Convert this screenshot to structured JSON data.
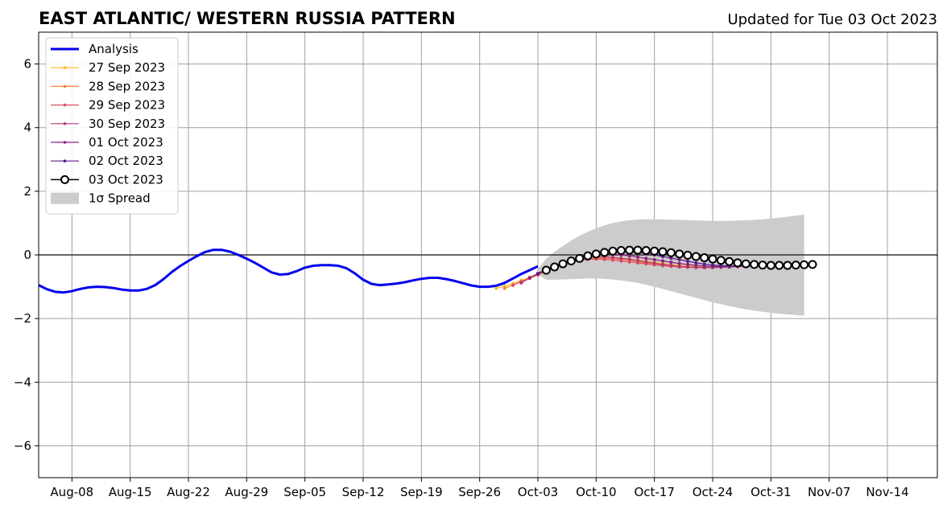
{
  "chart_data": {
    "type": "line",
    "title": "EAST ATLANTIC/ WESTERN RUSSIA PATTERN",
    "subtitle": "Updated for Tue 03 Oct 2023",
    "xlabel": "",
    "ylabel": "",
    "x_range": [
      "2023-08-04",
      "2023-11-20"
    ],
    "ylim": [
      -7,
      7
    ],
    "grid": true,
    "legend_position": "upper-left",
    "x_ticks": [
      {
        "date": "2023-08-08",
        "label": "Aug-08"
      },
      {
        "date": "2023-08-15",
        "label": "Aug-15"
      },
      {
        "date": "2023-08-22",
        "label": "Aug-22"
      },
      {
        "date": "2023-08-29",
        "label": "Aug-29"
      },
      {
        "date": "2023-09-05",
        "label": "Sep-05"
      },
      {
        "date": "2023-09-12",
        "label": "Sep-12"
      },
      {
        "date": "2023-09-19",
        "label": "Sep-19"
      },
      {
        "date": "2023-09-26",
        "label": "Sep-26"
      },
      {
        "date": "2023-10-03",
        "label": "Oct-03"
      },
      {
        "date": "2023-10-10",
        "label": "Oct-10"
      },
      {
        "date": "2023-10-17",
        "label": "Oct-17"
      },
      {
        "date": "2023-10-24",
        "label": "Oct-24"
      },
      {
        "date": "2023-10-31",
        "label": "Oct-31"
      },
      {
        "date": "2023-11-07",
        "label": "Nov-07"
      },
      {
        "date": "2023-11-14",
        "label": "Nov-14"
      }
    ],
    "y_ticks": [
      {
        "value": 6,
        "label": "6"
      },
      {
        "value": 4,
        "label": "4"
      },
      {
        "value": 2,
        "label": "2"
      },
      {
        "value": 0,
        "label": "0"
      },
      {
        "value": -2,
        "label": "−2"
      },
      {
        "value": -4,
        "label": "−4"
      },
      {
        "value": -6,
        "label": "−6"
      }
    ],
    "analysis": {
      "name": "Analysis",
      "color": "#0000ee",
      "points": [
        [
          "2023-08-04",
          -0.95
        ],
        [
          "2023-08-05",
          -1.08
        ],
        [
          "2023-08-06",
          -1.16
        ],
        [
          "2023-08-07",
          -1.18
        ],
        [
          "2023-08-08",
          -1.14
        ],
        [
          "2023-08-09",
          -1.07
        ],
        [
          "2023-08-10",
          -1.02
        ],
        [
          "2023-08-11",
          -1.0
        ],
        [
          "2023-08-12",
          -1.01
        ],
        [
          "2023-08-13",
          -1.04
        ],
        [
          "2023-08-14",
          -1.09
        ],
        [
          "2023-08-15",
          -1.12
        ],
        [
          "2023-08-16",
          -1.12
        ],
        [
          "2023-08-17",
          -1.07
        ],
        [
          "2023-08-18",
          -0.95
        ],
        [
          "2023-08-19",
          -0.76
        ],
        [
          "2023-08-20",
          -0.54
        ],
        [
          "2023-08-21",
          -0.35
        ],
        [
          "2023-08-22",
          -0.19
        ],
        [
          "2023-08-23",
          -0.04
        ],
        [
          "2023-08-24",
          0.09
        ],
        [
          "2023-08-25",
          0.16
        ],
        [
          "2023-08-26",
          0.16
        ],
        [
          "2023-08-27",
          0.1
        ],
        [
          "2023-08-28",
          0.0
        ],
        [
          "2023-08-29",
          -0.12
        ],
        [
          "2023-08-30",
          -0.25
        ],
        [
          "2023-08-31",
          -0.4
        ],
        [
          "2023-09-01",
          -0.55
        ],
        [
          "2023-09-02",
          -0.62
        ],
        [
          "2023-09-03",
          -0.6
        ],
        [
          "2023-09-04",
          -0.51
        ],
        [
          "2023-09-05",
          -0.4
        ],
        [
          "2023-09-06",
          -0.34
        ],
        [
          "2023-09-07",
          -0.32
        ],
        [
          "2023-09-08",
          -0.32
        ],
        [
          "2023-09-09",
          -0.34
        ],
        [
          "2023-09-10",
          -0.42
        ],
        [
          "2023-09-11",
          -0.58
        ],
        [
          "2023-09-12",
          -0.78
        ],
        [
          "2023-09-13",
          -0.91
        ],
        [
          "2023-09-14",
          -0.95
        ],
        [
          "2023-09-15",
          -0.93
        ],
        [
          "2023-09-16",
          -0.9
        ],
        [
          "2023-09-17",
          -0.86
        ],
        [
          "2023-09-18",
          -0.8
        ],
        [
          "2023-09-19",
          -0.75
        ],
        [
          "2023-09-20",
          -0.72
        ],
        [
          "2023-09-21",
          -0.72
        ],
        [
          "2023-09-22",
          -0.76
        ],
        [
          "2023-09-23",
          -0.82
        ],
        [
          "2023-09-24",
          -0.89
        ],
        [
          "2023-09-25",
          -0.96
        ],
        [
          "2023-09-26",
          -1.0
        ],
        [
          "2023-09-27",
          -1.0
        ],
        [
          "2023-09-28",
          -0.97
        ],
        [
          "2023-09-29",
          -0.88
        ],
        [
          "2023-09-30",
          -0.74
        ],
        [
          "2023-10-01",
          -0.6
        ],
        [
          "2023-10-02",
          -0.48
        ],
        [
          "2023-10-03",
          -0.36
        ]
      ]
    },
    "spread": {
      "name": "1σ Spread",
      "color": "#cccccc",
      "upper": [
        [
          "2023-10-03",
          -0.45
        ],
        [
          "2023-10-04",
          -0.12
        ],
        [
          "2023-10-05",
          0.1
        ],
        [
          "2023-10-06",
          0.28
        ],
        [
          "2023-10-07",
          0.45
        ],
        [
          "2023-10-08",
          0.6
        ],
        [
          "2023-10-09",
          0.73
        ],
        [
          "2023-10-10",
          0.84
        ],
        [
          "2023-10-11",
          0.93
        ],
        [
          "2023-10-12",
          1.0
        ],
        [
          "2023-10-13",
          1.05
        ],
        [
          "2023-10-14",
          1.09
        ],
        [
          "2023-10-15",
          1.11
        ],
        [
          "2023-10-16",
          1.12
        ],
        [
          "2023-10-17",
          1.12
        ],
        [
          "2023-10-18",
          1.12
        ],
        [
          "2023-10-19",
          1.11
        ],
        [
          "2023-10-20",
          1.1
        ],
        [
          "2023-10-21",
          1.09
        ],
        [
          "2023-10-22",
          1.08
        ],
        [
          "2023-10-23",
          1.08
        ],
        [
          "2023-10-24",
          1.07
        ],
        [
          "2023-10-25",
          1.07
        ],
        [
          "2023-10-26",
          1.07
        ],
        [
          "2023-10-27",
          1.08
        ],
        [
          "2023-10-28",
          1.09
        ],
        [
          "2023-10-29",
          1.1
        ],
        [
          "2023-10-30",
          1.12
        ],
        [
          "2023-10-31",
          1.14
        ],
        [
          "2023-11-01",
          1.17
        ],
        [
          "2023-11-02",
          1.2
        ],
        [
          "2023-11-03",
          1.23
        ],
        [
          "2023-11-04",
          1.27
        ]
      ],
      "lower": [
        [
          "2023-10-03",
          -0.62
        ],
        [
          "2023-10-04",
          -0.78
        ],
        [
          "2023-10-05",
          -0.78
        ],
        [
          "2023-10-06",
          -0.77
        ],
        [
          "2023-10-07",
          -0.76
        ],
        [
          "2023-10-08",
          -0.75
        ],
        [
          "2023-10-09",
          -0.74
        ],
        [
          "2023-10-10",
          -0.74
        ],
        [
          "2023-10-11",
          -0.75
        ],
        [
          "2023-10-12",
          -0.77
        ],
        [
          "2023-10-13",
          -0.8
        ],
        [
          "2023-10-14",
          -0.84
        ],
        [
          "2023-10-15",
          -0.88
        ],
        [
          "2023-10-16",
          -0.94
        ],
        [
          "2023-10-17",
          -1.0
        ],
        [
          "2023-10-18",
          -1.07
        ],
        [
          "2023-10-19",
          -1.14
        ],
        [
          "2023-10-20",
          -1.21
        ],
        [
          "2023-10-21",
          -1.28
        ],
        [
          "2023-10-22",
          -1.35
        ],
        [
          "2023-10-23",
          -1.42
        ],
        [
          "2023-10-24",
          -1.49
        ],
        [
          "2023-10-25",
          -1.55
        ],
        [
          "2023-10-26",
          -1.61
        ],
        [
          "2023-10-27",
          -1.66
        ],
        [
          "2023-10-28",
          -1.71
        ],
        [
          "2023-10-29",
          -1.75
        ],
        [
          "2023-10-30",
          -1.79
        ],
        [
          "2023-10-31",
          -1.82
        ],
        [
          "2023-11-01",
          -1.85
        ],
        [
          "2023-11-02",
          -1.87
        ],
        [
          "2023-11-03",
          -1.89
        ],
        [
          "2023-11-04",
          -1.91
        ]
      ]
    },
    "forecasts": [
      {
        "name": "27 Sep 2023",
        "color": "#fcb723",
        "start": "2023-09-28",
        "values": [
          -1.05,
          -0.98,
          -0.9,
          -0.8,
          -0.7,
          -0.6,
          -0.5,
          -0.4,
          -0.3,
          -0.22,
          -0.15,
          -0.1,
          -0.08,
          -0.07,
          -0.08,
          -0.1,
          -0.13,
          -0.16,
          -0.2,
          -0.24,
          -0.27,
          -0.3,
          -0.33,
          -0.35,
          -0.36,
          -0.37,
          -0.37,
          -0.36,
          -0.35,
          -0.34,
          -0.33,
          -0.32,
          -0.31,
          -0.3,
          -0.3,
          -0.3,
          -0.3,
          -0.3
        ]
      },
      {
        "name": "28 Sep 2023",
        "color": "#f4813a",
        "start": "2023-09-29",
        "values": [
          -1.05,
          -0.95,
          -0.85,
          -0.74,
          -0.63,
          -0.52,
          -0.42,
          -0.33,
          -0.25,
          -0.18,
          -0.13,
          -0.1,
          -0.1,
          -0.11,
          -0.14,
          -0.17,
          -0.21,
          -0.25,
          -0.28,
          -0.31,
          -0.34,
          -0.36,
          -0.38,
          -0.39,
          -0.39,
          -0.38,
          -0.37,
          -0.36,
          -0.35,
          -0.34,
          -0.33,
          -0.32,
          -0.31,
          -0.3,
          -0.3,
          -0.3,
          -0.3
        ]
      },
      {
        "name": "29 Sep 2023",
        "color": "#dd4f66",
        "start": "2023-09-30",
        "values": [
          -0.95,
          -0.84,
          -0.73,
          -0.61,
          -0.5,
          -0.4,
          -0.31,
          -0.24,
          -0.18,
          -0.14,
          -0.13,
          -0.14,
          -0.16,
          -0.19,
          -0.22,
          -0.25,
          -0.28,
          -0.31,
          -0.34,
          -0.36,
          -0.38,
          -0.39,
          -0.4,
          -0.4,
          -0.39,
          -0.38,
          -0.37,
          -0.36,
          -0.35,
          -0.34,
          -0.33,
          -0.32,
          -0.31,
          -0.3,
          -0.3,
          -0.3
        ]
      },
      {
        "name": "30 Sep 2023",
        "color": "#b63679",
        "start": "2023-10-01",
        "values": [
          -0.88,
          -0.73,
          -0.6,
          -0.47,
          -0.36,
          -0.27,
          -0.19,
          -0.13,
          -0.08,
          -0.06,
          -0.06,
          -0.08,
          -0.11,
          -0.14,
          -0.18,
          -0.22,
          -0.26,
          -0.3,
          -0.33,
          -0.36,
          -0.38,
          -0.39,
          -0.4,
          -0.4,
          -0.39,
          -0.38,
          -0.37,
          -0.36,
          -0.35,
          -0.34,
          -0.33,
          -0.32,
          -0.31,
          -0.3,
          -0.3
        ]
      },
      {
        "name": "01 Oct 2023",
        "color": "#8b2282",
        "start": "2023-10-02",
        "values": [
          -0.72,
          -0.58,
          -0.45,
          -0.34,
          -0.24,
          -0.16,
          -0.09,
          -0.04,
          0.0,
          0.02,
          0.02,
          0.0,
          -0.03,
          -0.07,
          -0.11,
          -0.15,
          -0.19,
          -0.23,
          -0.27,
          -0.3,
          -0.33,
          -0.35,
          -0.36,
          -0.37,
          -0.37,
          -0.36,
          -0.35,
          -0.34,
          -0.33,
          -0.32,
          -0.31,
          -0.3,
          -0.3,
          -0.3
        ]
      },
      {
        "name": "02 Oct 2023",
        "color": "#5d1a8c",
        "start": "2023-10-03",
        "values": [
          -0.6,
          -0.48,
          -0.37,
          -0.27,
          -0.18,
          -0.1,
          -0.03,
          0.03,
          0.07,
          0.09,
          0.1,
          0.09,
          0.07,
          0.04,
          0.0,
          -0.05,
          -0.1,
          -0.15,
          -0.2,
          -0.25,
          -0.29,
          -0.32,
          -0.34,
          -0.35,
          -0.35,
          -0.34,
          -0.33,
          -0.32,
          -0.31,
          -0.3,
          -0.3,
          -0.3,
          -0.3
        ]
      },
      {
        "name": "03 Oct 2023",
        "color": "#000000",
        "start": "2023-10-04",
        "values": [
          -0.48,
          -0.38,
          -0.28,
          -0.19,
          -0.11,
          -0.03,
          0.03,
          0.08,
          0.12,
          0.14,
          0.15,
          0.15,
          0.14,
          0.12,
          0.1,
          0.07,
          0.03,
          -0.01,
          -0.05,
          -0.09,
          -0.13,
          -0.17,
          -0.21,
          -0.25,
          -0.28,
          -0.3,
          -0.32,
          -0.33,
          -0.33,
          -0.33,
          -0.32,
          -0.31,
          -0.3
        ]
      }
    ],
    "legend": [
      {
        "label": "Analysis",
        "kind": "line-thick",
        "color": "#0000ee"
      },
      {
        "label": "27 Sep 2023",
        "kind": "line-marker",
        "color": "#fcb723"
      },
      {
        "label": "28 Sep 2023",
        "kind": "line-marker",
        "color": "#f4813a"
      },
      {
        "label": "29 Sep 2023",
        "kind": "line-marker",
        "color": "#dd4f66"
      },
      {
        "label": "30 Sep 2023",
        "kind": "line-marker",
        "color": "#b63679"
      },
      {
        "label": "01 Oct 2023",
        "kind": "line-marker",
        "color": "#8b2282"
      },
      {
        "label": "02 Oct 2023",
        "kind": "line-marker",
        "color": "#5d1a8c"
      },
      {
        "label": "03 Oct 2023",
        "kind": "line-big-marker",
        "color": "#000000"
      },
      {
        "label": "1σ Spread",
        "kind": "patch",
        "color": "#cccccc"
      }
    ]
  }
}
